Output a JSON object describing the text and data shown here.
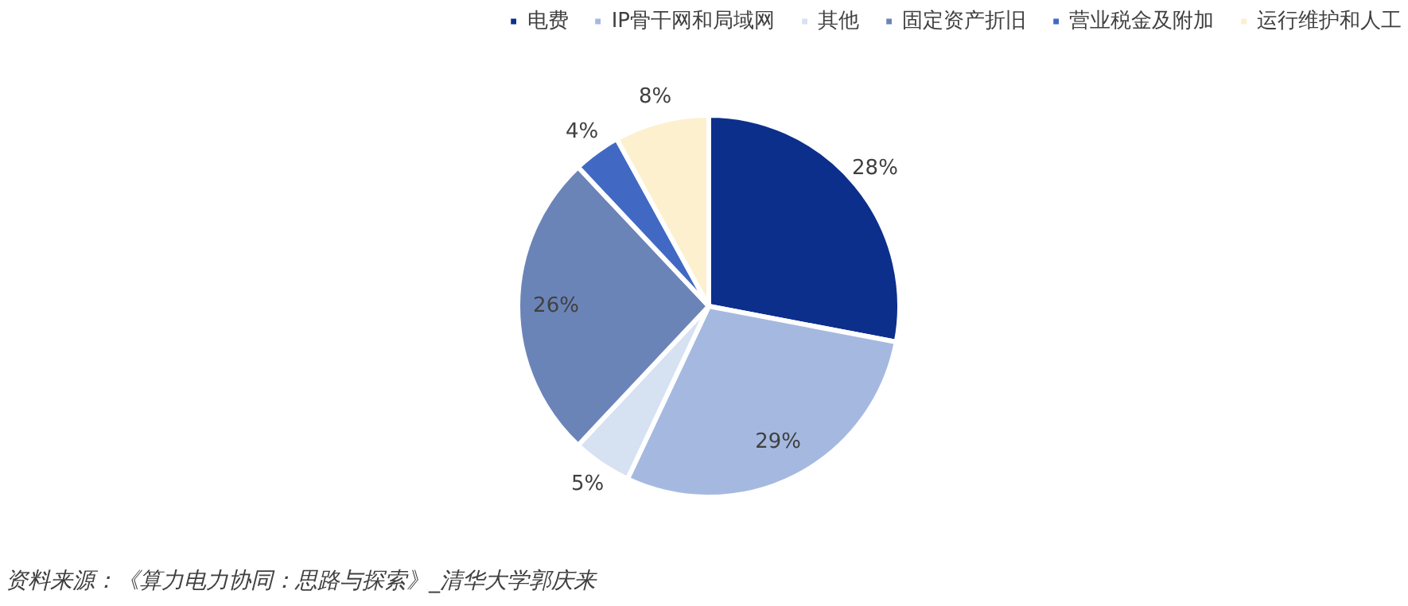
{
  "chart_data": {
    "type": "pie",
    "categories": [
      "电费",
      "IP骨干网和局域网",
      "其他",
      "固定资产折旧",
      "营业税金及附加",
      "运行维护和人工"
    ],
    "values": [
      28,
      29,
      5,
      26,
      4,
      8
    ],
    "colors": [
      "#0d2f8c",
      "#a5b9e0",
      "#d6e1f2",
      "#6b84b8",
      "#4169c4",
      "#fdf0cf"
    ],
    "value_labels": [
      "28%",
      "29%",
      "5%",
      "26%",
      "4%",
      "8%"
    ],
    "legend": "top",
    "annotations": [
      "资料来源：《算力电力协同：思路与探索》_清华大学郭庆来"
    ]
  }
}
